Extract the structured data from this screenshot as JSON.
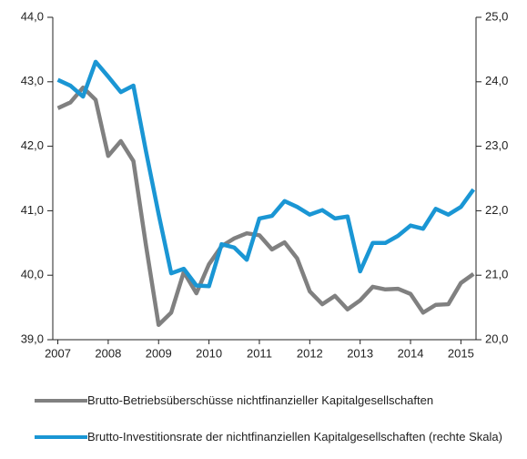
{
  "chart_data": {
    "type": "line",
    "x": [
      2007,
      2007.25,
      2007.5,
      2007.75,
      2008,
      2008.25,
      2008.5,
      2008.75,
      2009,
      2009.25,
      2009.5,
      2009.75,
      2010,
      2010.25,
      2010.5,
      2010.75,
      2011,
      2011.25,
      2011.5,
      2011.75,
      2012,
      2012.25,
      2012.5,
      2012.75,
      2013,
      2013.25,
      2013.5,
      2013.75,
      2014,
      2014.25,
      2014.5,
      2014.75,
      2015,
      2015.25
    ],
    "series": [
      {
        "name": "Brutto-Betriebsüberschüsse nichtfinanzieller Kapitalgesellschaften",
        "color": "#808080",
        "values": [
          42.59,
          42.68,
          42.91,
          42.72,
          41.85,
          42.08,
          41.77,
          40.46,
          39.23,
          39.42,
          40.05,
          39.72,
          40.17,
          40.45,
          40.57,
          40.65,
          40.62,
          40.4,
          40.51,
          40.26,
          39.75,
          39.55,
          39.68,
          39.47,
          39.61,
          39.82,
          39.78,
          39.79,
          39.71,
          39.42,
          39.54,
          39.55,
          39.88,
          40.02
        ]
      },
      {
        "name": "Brutto-Investitionsrate der nichtfinanziellen Kapitalgesellschaften (rechte Skala)",
        "color": "#1a96d4",
        "axis": "y2",
        "values": [
          24.03,
          23.94,
          23.77,
          24.31,
          24.08,
          23.84,
          23.94,
          22.92,
          21.95,
          21.03,
          21.1,
          20.84,
          20.83,
          21.48,
          21.43,
          21.24,
          21.88,
          21.92,
          22.15,
          22.06,
          21.94,
          22.01,
          21.88,
          21.91,
          21.06,
          21.5,
          21.5,
          21.61,
          21.77,
          21.72,
          22.03,
          21.94,
          22.06,
          22.33
        ]
      }
    ],
    "xlim": [
      2006.9,
      2015.3
    ],
    "xticks": [
      2007,
      2008,
      2009,
      2010,
      2011,
      2012,
      2013,
      2014,
      2015
    ],
    "ylim": [
      39,
      44
    ],
    "yticks": [
      {
        "value": 39,
        "label": "39,0"
      },
      {
        "value": 40,
        "label": "40,0"
      },
      {
        "value": 41,
        "label": "41,0"
      },
      {
        "value": 42,
        "label": "42,0"
      },
      {
        "value": 43,
        "label": "43,0"
      },
      {
        "value": 44,
        "label": "44,0"
      }
    ],
    "y2lim": [
      20,
      25
    ],
    "y2ticks": [
      {
        "value": 20,
        "label": "20,0"
      },
      {
        "value": 21,
        "label": "21,0"
      },
      {
        "value": 22,
        "label": "22,0"
      },
      {
        "value": 23,
        "label": "23,0"
      },
      {
        "value": 24,
        "label": "24,0"
      },
      {
        "value": 25,
        "label": "25,0"
      }
    ],
    "grid": false
  }
}
